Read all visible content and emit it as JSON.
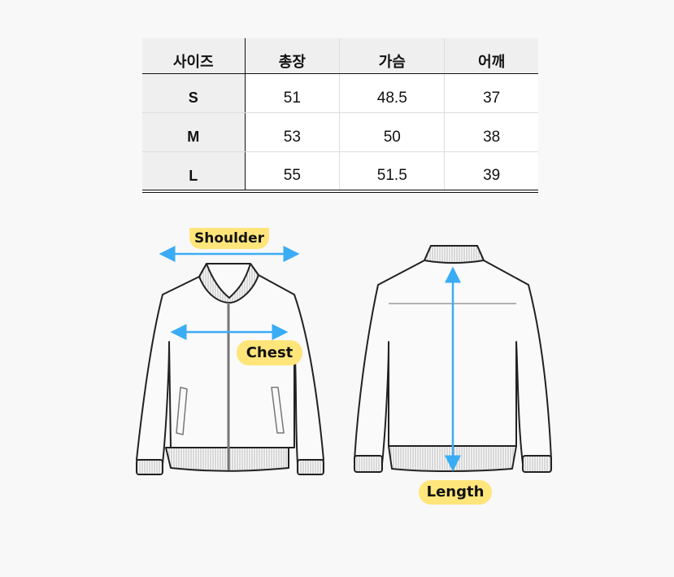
{
  "size_table": {
    "headers": [
      "사이즈",
      "총장",
      "가슴",
      "어깨"
    ],
    "rows": [
      [
        "S",
        "51",
        "48.5",
        "37"
      ],
      [
        "M",
        "53",
        "50",
        "38"
      ],
      [
        "L",
        "55",
        "51.5",
        "39"
      ]
    ]
  },
  "diagram": {
    "shoulder_label": "Shoulder",
    "chest_label": "Chest",
    "length_label": "Length",
    "colors": {
      "arrow": "#3aacf5",
      "label_bg": "#ffe57a",
      "outline": "#222222"
    }
  }
}
